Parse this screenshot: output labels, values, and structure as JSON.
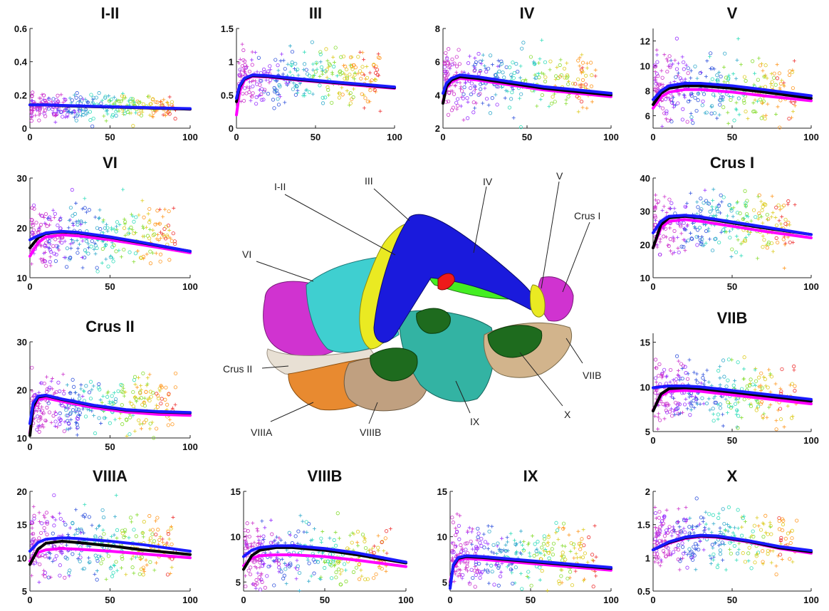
{
  "colors": {
    "fit_black": "#000000",
    "fit_blue": "#1a1aff",
    "fit_magenta": "#ff00ff",
    "scatter_palette": [
      "#cc33cc",
      "#9933ff",
      "#3355dd",
      "#33aacc",
      "#33ddbb",
      "#88dd33",
      "#ddcc22",
      "#ff9922",
      "#ee3333"
    ],
    "regions": {
      "I-II": "#2222aa",
      "III": "#eaea22",
      "IV": "#44ee22",
      "V": "#eaea22",
      "VI": "#44dddd",
      "Crus I": "#dd33dd",
      "Crus II": "#e8e0d4",
      "VIIB": "#d2b48c",
      "VIIIA": "#e88a30",
      "VIIIB": "#c0a080",
      "IX": "#33b3a3",
      "X": "#1e6b1e"
    }
  },
  "chart_data": [
    {
      "type": "scatter",
      "title": "I-II",
      "xlim": [
        0,
        100
      ],
      "ylim": [
        0,
        0.6
      ],
      "xticks": [
        "0",
        "50",
        "100"
      ],
      "yticks": [
        "0",
        "0.2",
        "0.4",
        "0.6"
      ],
      "scatter_center": 0.13,
      "scatter_spread": 0.04,
      "series": [
        {
          "color": "magenta",
          "x": [
            0,
            10,
            20,
            40,
            60,
            80,
            100
          ],
          "y": [
            0.14,
            0.14,
            0.135,
            0.13,
            0.125,
            0.12,
            0.115
          ]
        },
        {
          "color": "black",
          "x": [
            0,
            10,
            20,
            40,
            60,
            80,
            100
          ],
          "y": [
            0.14,
            0.14,
            0.135,
            0.13,
            0.125,
            0.12,
            0.115
          ]
        },
        {
          "color": "blue",
          "x": [
            0,
            10,
            20,
            40,
            60,
            80,
            100
          ],
          "y": [
            0.14,
            0.14,
            0.137,
            0.132,
            0.127,
            0.122,
            0.118
          ]
        }
      ]
    },
    {
      "type": "scatter",
      "title": "III",
      "xlim": [
        0,
        100
      ],
      "ylim": [
        0,
        1.5
      ],
      "xticks": [
        "0",
        "50",
        "100"
      ],
      "yticks": [
        "0",
        "0.5",
        "1",
        "1.5"
      ],
      "scatter_center": 0.75,
      "scatter_spread": 0.2,
      "series": [
        {
          "color": "magenta",
          "x": [
            0,
            2,
            5,
            10,
            20,
            40,
            60,
            80,
            100
          ],
          "y": [
            0.2,
            0.55,
            0.72,
            0.78,
            0.77,
            0.72,
            0.68,
            0.64,
            0.6
          ]
        },
        {
          "color": "black",
          "x": [
            0,
            2,
            5,
            10,
            20,
            40,
            60,
            80,
            100
          ],
          "y": [
            0.4,
            0.62,
            0.74,
            0.79,
            0.78,
            0.73,
            0.69,
            0.65,
            0.61
          ]
        },
        {
          "color": "blue",
          "x": [
            0,
            2,
            5,
            10,
            20,
            40,
            60,
            80,
            100
          ],
          "y": [
            0.45,
            0.64,
            0.75,
            0.8,
            0.79,
            0.74,
            0.7,
            0.66,
            0.62
          ]
        }
      ]
    },
    {
      "type": "scatter",
      "title": "IV",
      "xlim": [
        0,
        100
      ],
      "ylim": [
        2,
        8
      ],
      "xticks": [
        "0",
        "50",
        "100"
      ],
      "yticks": [
        "2",
        "4",
        "6",
        "8"
      ],
      "scatter_center": 4.8,
      "scatter_spread": 0.9,
      "series": [
        {
          "color": "magenta",
          "x": [
            0,
            2,
            5,
            10,
            20,
            40,
            60,
            80,
            100
          ],
          "y": [
            3.6,
            4.4,
            4.8,
            5.0,
            4.9,
            4.6,
            4.3,
            4.1,
            3.9
          ]
        },
        {
          "color": "black",
          "x": [
            0,
            2,
            5,
            10,
            20,
            40,
            60,
            80,
            100
          ],
          "y": [
            3.5,
            4.5,
            4.9,
            5.1,
            5.0,
            4.7,
            4.4,
            4.2,
            4.0
          ]
        },
        {
          "color": "blue",
          "x": [
            0,
            2,
            5,
            10,
            20,
            40,
            60,
            80,
            100
          ],
          "y": [
            4.1,
            4.7,
            5.0,
            5.2,
            5.1,
            4.8,
            4.5,
            4.3,
            4.1
          ]
        }
      ]
    },
    {
      "type": "scatter",
      "title": "V",
      "xlim": [
        0,
        100
      ],
      "ylim": [
        5,
        13
      ],
      "xticks": [
        "0",
        "50",
        "100"
      ],
      "yticks": [
        "6",
        "8",
        "10",
        "12"
      ],
      "scatter_center": 8.2,
      "scatter_spread": 1.4,
      "series": [
        {
          "color": "magenta",
          "x": [
            0,
            5,
            10,
            20,
            30,
            50,
            70,
            100
          ],
          "y": [
            6.6,
            7.5,
            7.9,
            8.1,
            8.1,
            7.9,
            7.6,
            7.2
          ]
        },
        {
          "color": "black",
          "x": [
            0,
            5,
            10,
            20,
            30,
            50,
            70,
            100
          ],
          "y": [
            6.9,
            7.8,
            8.2,
            8.4,
            8.4,
            8.2,
            7.9,
            7.4
          ]
        },
        {
          "color": "blue",
          "x": [
            0,
            5,
            10,
            20,
            30,
            50,
            70,
            100
          ],
          "y": [
            7.3,
            8.0,
            8.4,
            8.6,
            8.6,
            8.4,
            8.1,
            7.6
          ]
        }
      ]
    },
    {
      "type": "scatter",
      "title": "VI",
      "xlim": [
        0,
        100
      ],
      "ylim": [
        10,
        30
      ],
      "xticks": [
        "0",
        "50",
        "100"
      ],
      "yticks": [
        "10",
        "20",
        "30"
      ],
      "scatter_center": 18.5,
      "scatter_spread": 3.2,
      "series": [
        {
          "color": "magenta",
          "x": [
            0,
            5,
            10,
            20,
            30,
            50,
            70,
            100
          ],
          "y": [
            14.3,
            17.0,
            18.2,
            18.6,
            18.4,
            17.6,
            16.6,
            15.0
          ]
        },
        {
          "color": "black",
          "x": [
            0,
            5,
            10,
            20,
            30,
            50,
            70,
            100
          ],
          "y": [
            16.0,
            18.0,
            18.9,
            19.2,
            19.0,
            18.1,
            17.0,
            15.3
          ]
        },
        {
          "color": "blue",
          "x": [
            0,
            5,
            10,
            20,
            30,
            50,
            70,
            100
          ],
          "y": [
            17.6,
            18.4,
            19.0,
            19.3,
            19.1,
            18.2,
            17.1,
            15.3
          ]
        }
      ]
    },
    {
      "type": "scatter",
      "title": "Crus I",
      "xlim": [
        0,
        100
      ],
      "ylim": [
        10,
        40
      ],
      "xticks": [
        "0",
        "50",
        "100"
      ],
      "yticks": [
        "10",
        "20",
        "30",
        "40"
      ],
      "scatter_center": 26.5,
      "scatter_spread": 4.5,
      "series": [
        {
          "color": "magenta",
          "x": [
            0,
            5,
            10,
            20,
            30,
            50,
            70,
            100
          ],
          "y": [
            19.0,
            25.0,
            27.0,
            27.5,
            27.0,
            25.5,
            24.0,
            22.0
          ]
        },
        {
          "color": "black",
          "x": [
            0,
            5,
            10,
            20,
            30,
            50,
            70,
            100
          ],
          "y": [
            19.0,
            26.0,
            28.0,
            28.5,
            28.0,
            26.5,
            25.0,
            23.0
          ]
        },
        {
          "color": "blue",
          "x": [
            0,
            5,
            10,
            20,
            30,
            50,
            70,
            100
          ],
          "y": [
            23.5,
            27.0,
            28.5,
            28.8,
            28.3,
            26.8,
            25.3,
            23.0
          ]
        }
      ]
    },
    {
      "type": "scatter",
      "title": "Crus II",
      "xlim": [
        0,
        100
      ],
      "ylim": [
        10,
        30
      ],
      "xticks": [
        "0",
        "50",
        "100"
      ],
      "yticks": [
        "10",
        "20",
        "30"
      ],
      "scatter_center": 17.0,
      "scatter_spread": 3.0,
      "series": [
        {
          "color": "magenta",
          "x": [
            0,
            2,
            5,
            10,
            20,
            40,
            60,
            80,
            100
          ],
          "y": [
            11.0,
            16.0,
            18.0,
            18.3,
            17.6,
            16.3,
            15.4,
            14.9,
            14.7
          ]
        },
        {
          "color": "black",
          "x": [
            0,
            2,
            5,
            10,
            20,
            40,
            60,
            80,
            100
          ],
          "y": [
            10.5,
            16.5,
            18.5,
            18.8,
            18.0,
            16.7,
            15.8,
            15.4,
            15.2
          ]
        },
        {
          "color": "blue",
          "x": [
            0,
            2,
            5,
            10,
            20,
            40,
            60,
            80,
            100
          ],
          "y": [
            13.0,
            17.2,
            18.7,
            18.9,
            18.1,
            16.8,
            15.9,
            15.5,
            15.3
          ]
        }
      ]
    },
    {
      "type": "scatter",
      "title": "VIIB",
      "xlim": [
        0,
        100
      ],
      "ylim": [
        5,
        16
      ],
      "xticks": [
        "0",
        "50",
        "100"
      ],
      "yticks": [
        "5",
        "10",
        "15"
      ],
      "scatter_center": 9.5,
      "scatter_spread": 1.7,
      "series": [
        {
          "color": "magenta",
          "x": [
            0,
            5,
            10,
            20,
            30,
            50,
            70,
            100
          ],
          "y": [
            7.4,
            9.0,
            9.5,
            9.6,
            9.5,
            9.1,
            8.7,
            8.1
          ]
        },
        {
          "color": "black",
          "x": [
            0,
            5,
            10,
            20,
            30,
            50,
            70,
            100
          ],
          "y": [
            7.3,
            9.2,
            9.8,
            9.9,
            9.8,
            9.4,
            9.0,
            8.4
          ]
        },
        {
          "color": "blue",
          "x": [
            0,
            5,
            10,
            20,
            30,
            50,
            70,
            100
          ],
          "y": [
            9.9,
            10.0,
            10.1,
            10.1,
            10.0,
            9.6,
            9.2,
            8.6
          ]
        }
      ]
    },
    {
      "type": "scatter",
      "title": "VIIIA",
      "xlim": [
        0,
        100
      ],
      "ylim": [
        5,
        20
      ],
      "xticks": [
        "0",
        "50",
        "100"
      ],
      "yticks": [
        "5",
        "10",
        "15",
        "20"
      ],
      "scatter_center": 12.0,
      "scatter_spread": 2.6,
      "series": [
        {
          "color": "magenta",
          "x": [
            0,
            5,
            10,
            20,
            30,
            50,
            70,
            100
          ],
          "y": [
            9.5,
            10.8,
            11.2,
            11.4,
            11.3,
            11.0,
            10.6,
            10.0
          ]
        },
        {
          "color": "black",
          "x": [
            0,
            5,
            10,
            20,
            30,
            50,
            70,
            100
          ],
          "y": [
            9.0,
            11.3,
            12.2,
            12.5,
            12.3,
            11.8,
            11.2,
            10.5
          ]
        },
        {
          "color": "blue",
          "x": [
            0,
            5,
            10,
            20,
            30,
            50,
            70,
            100
          ],
          "y": [
            11.0,
            12.3,
            12.8,
            13.0,
            12.9,
            12.5,
            12.0,
            11.0
          ]
        }
      ]
    },
    {
      "type": "scatter",
      "title": "VIIIB",
      "xlim": [
        0,
        100
      ],
      "ylim": [
        4,
        15
      ],
      "xticks": [
        "0",
        "50",
        "100"
      ],
      "yticks": [
        "5",
        "10",
        "15"
      ],
      "scatter_center": 8.0,
      "scatter_spread": 1.8,
      "series": [
        {
          "color": "magenta",
          "x": [
            0,
            5,
            10,
            20,
            30,
            50,
            70,
            100
          ],
          "y": [
            6.8,
            7.6,
            7.9,
            8.0,
            8.0,
            7.8,
            7.4,
            6.7
          ]
        },
        {
          "color": "black",
          "x": [
            0,
            5,
            10,
            20,
            30,
            50,
            70,
            100
          ],
          "y": [
            6.4,
            7.9,
            8.5,
            8.8,
            8.8,
            8.5,
            8.0,
            7.1
          ]
        },
        {
          "color": "blue",
          "x": [
            0,
            5,
            10,
            20,
            30,
            50,
            70,
            100
          ],
          "y": [
            7.8,
            8.5,
            8.8,
            9.0,
            9.0,
            8.7,
            8.2,
            7.2
          ]
        }
      ]
    },
    {
      "type": "scatter",
      "title": "IX",
      "xlim": [
        0,
        100
      ],
      "ylim": [
        4,
        15
      ],
      "xticks": [
        "0",
        "50",
        "100"
      ],
      "yticks": [
        "5",
        "10",
        "15"
      ],
      "scatter_center": 7.8,
      "scatter_spread": 1.7,
      "series": [
        {
          "color": "magenta",
          "x": [
            0,
            2,
            5,
            10,
            20,
            40,
            60,
            80,
            100
          ],
          "y": [
            5.0,
            6.6,
            7.4,
            7.6,
            7.5,
            7.2,
            6.9,
            6.6,
            6.3
          ]
        },
        {
          "color": "black",
          "x": [
            0,
            2,
            5,
            10,
            20,
            40,
            60,
            80,
            100
          ],
          "y": [
            4.6,
            6.8,
            7.6,
            7.8,
            7.7,
            7.4,
            7.1,
            6.8,
            6.5
          ]
        },
        {
          "color": "blue",
          "x": [
            0,
            2,
            5,
            10,
            20,
            40,
            60,
            80,
            100
          ],
          "y": [
            4.3,
            6.9,
            7.7,
            7.9,
            7.8,
            7.5,
            7.2,
            6.9,
            6.6
          ]
        }
      ]
    },
    {
      "type": "scatter",
      "title": "X",
      "xlim": [
        0,
        100
      ],
      "ylim": [
        0.5,
        2
      ],
      "xticks": [
        "0",
        "50",
        "100"
      ],
      "yticks": [
        "0.5",
        "1",
        "1.5",
        "2"
      ],
      "scatter_center": 1.3,
      "scatter_spread": 0.22,
      "series": [
        {
          "color": "magenta",
          "x": [
            0,
            10,
            20,
            30,
            40,
            60,
            80,
            100
          ],
          "y": [
            1.12,
            1.22,
            1.29,
            1.32,
            1.31,
            1.24,
            1.14,
            1.07
          ]
        },
        {
          "color": "black",
          "x": [
            0,
            10,
            20,
            30,
            40,
            60,
            80,
            100
          ],
          "y": [
            1.12,
            1.23,
            1.3,
            1.33,
            1.32,
            1.25,
            1.15,
            1.09
          ]
        },
        {
          "color": "blue",
          "x": [
            0,
            10,
            20,
            30,
            40,
            60,
            80,
            100
          ],
          "y": [
            1.12,
            1.24,
            1.31,
            1.34,
            1.33,
            1.26,
            1.17,
            1.11
          ]
        }
      ]
    }
  ],
  "figure": {
    "region_labels": [
      "I-II",
      "III",
      "IV",
      "V",
      "Crus I",
      "VI",
      "Crus II",
      "VIIB",
      "VIIIA",
      "VIIIB",
      "IX",
      "X"
    ]
  }
}
